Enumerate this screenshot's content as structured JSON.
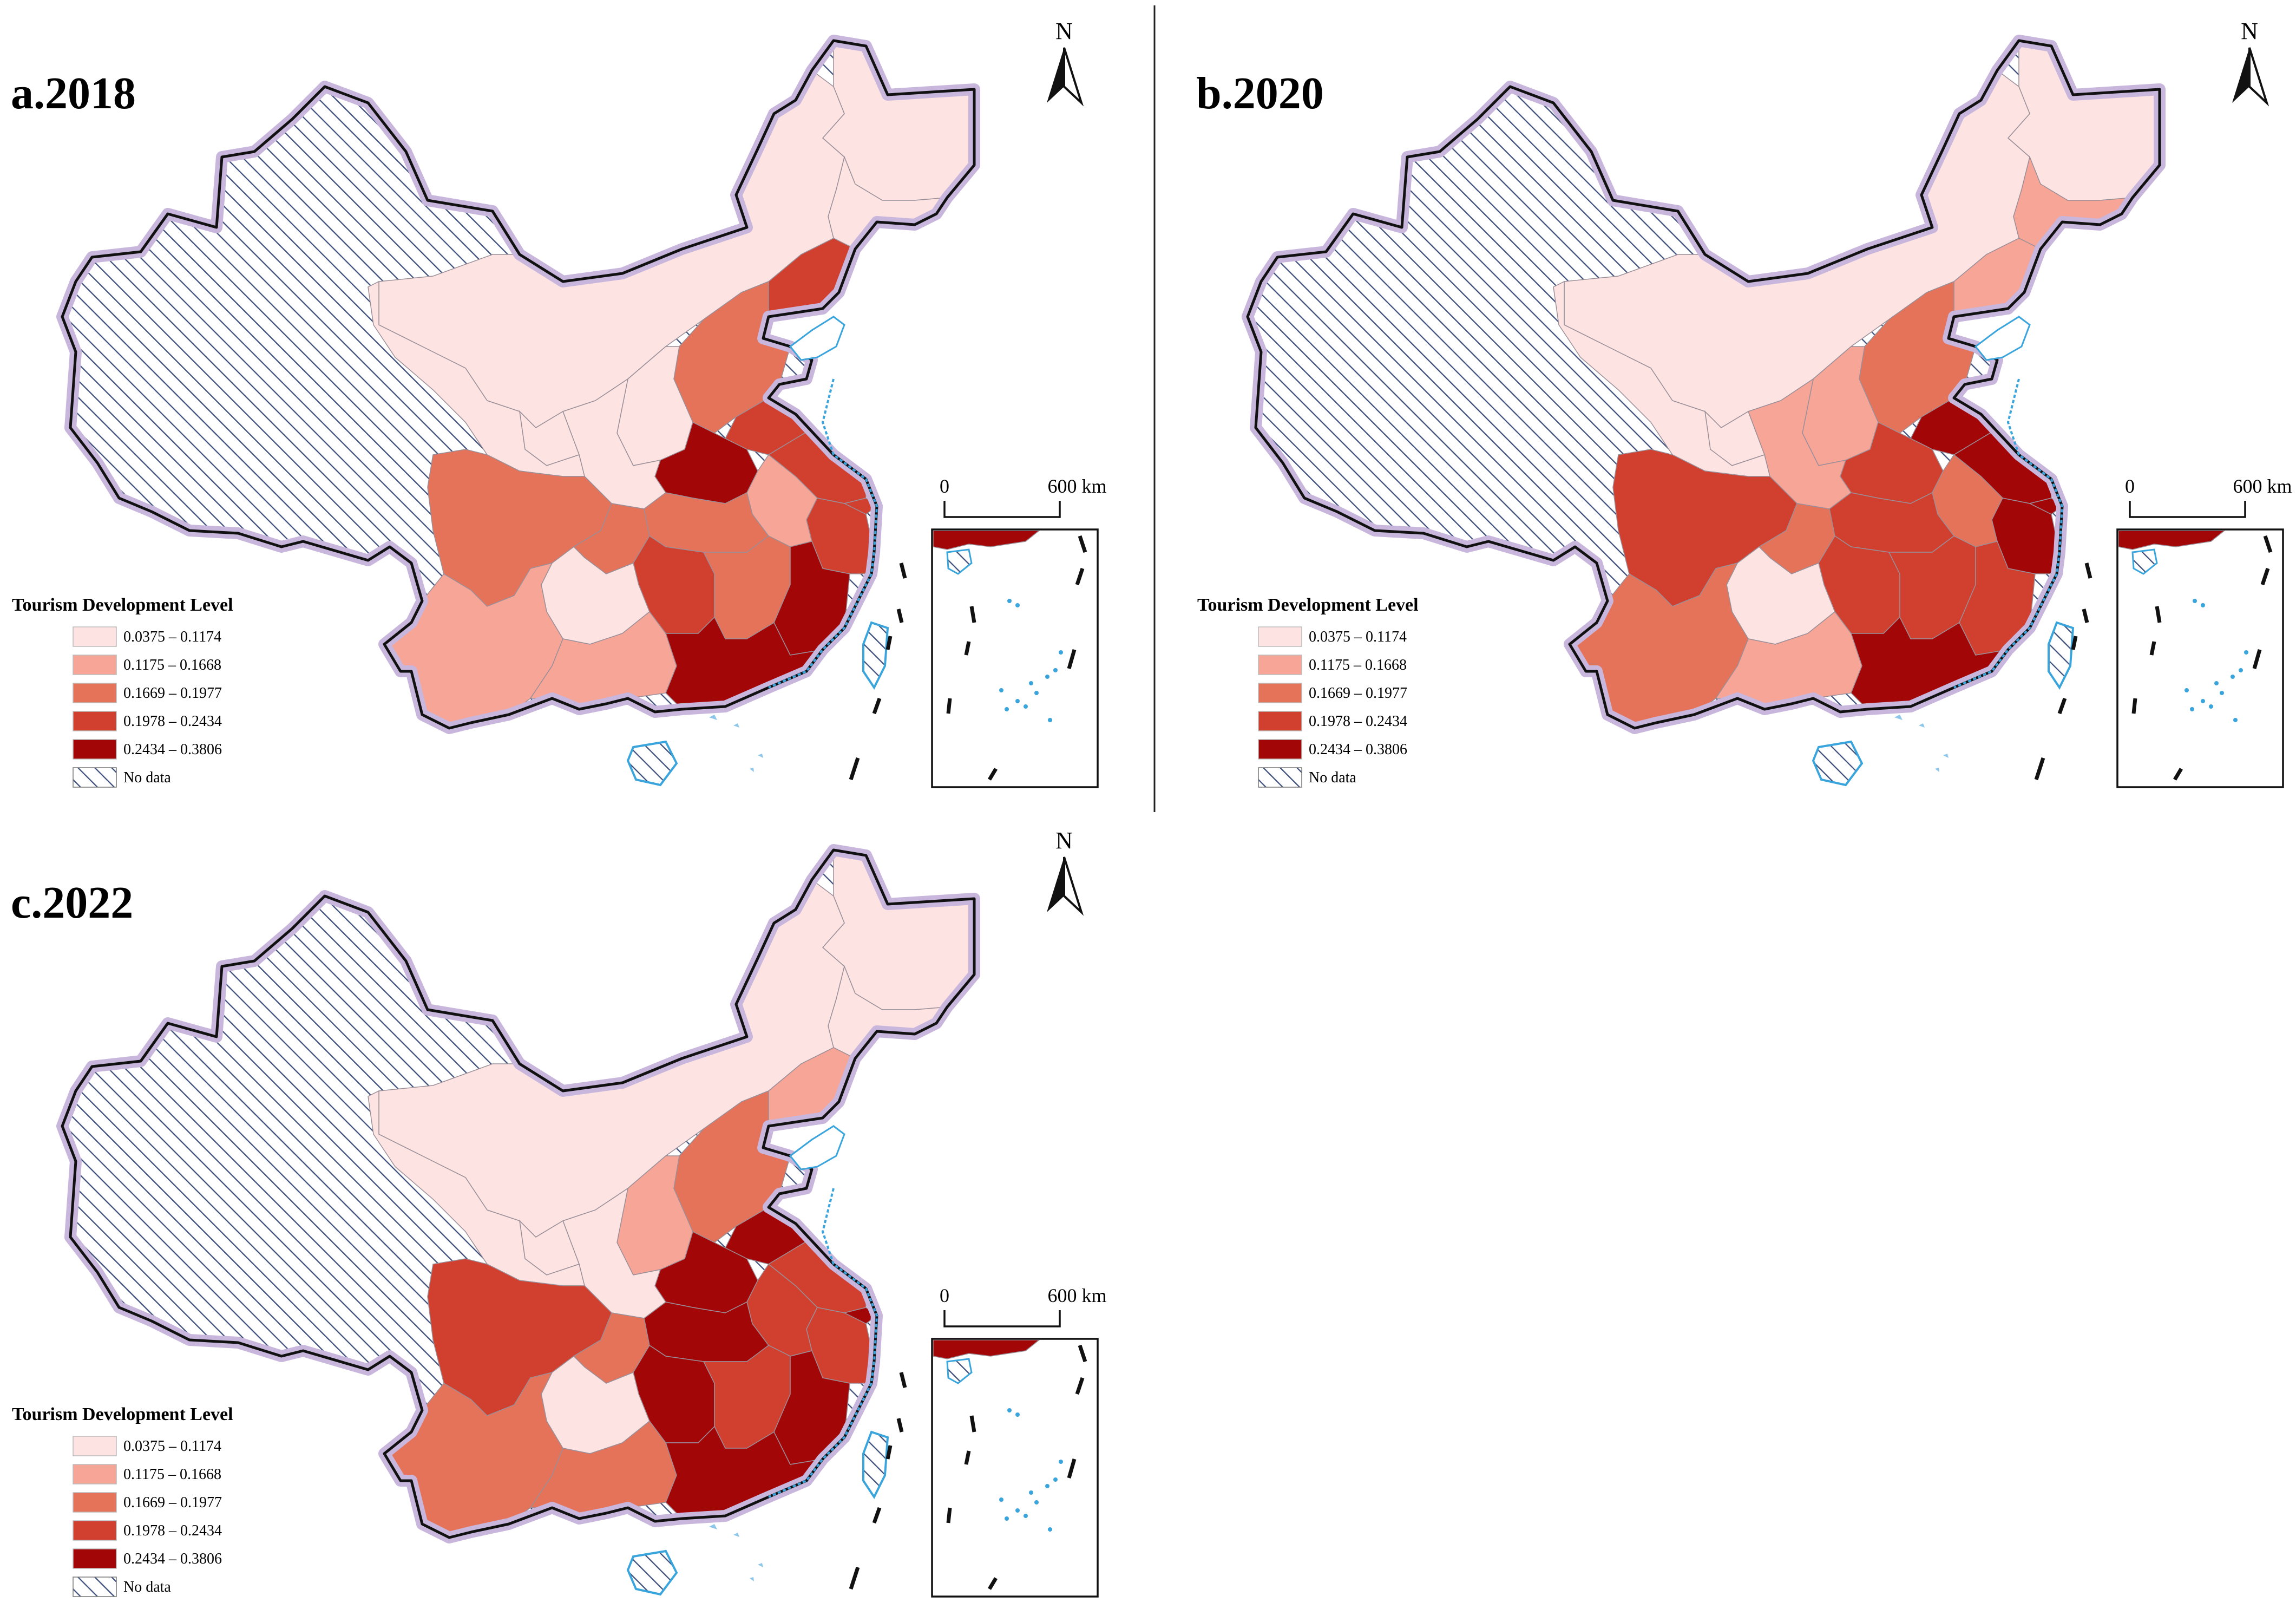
{
  "legend": {
    "title": "Tourism Development Level",
    "classes": [
      {
        "label": "0.0375 – 0.1174",
        "color": "#fde3e1"
      },
      {
        "label": "0.1175 – 0.1668",
        "color": "#f7a597"
      },
      {
        "label": "0.1669 – 0.1977",
        "color": "#e5735a"
      },
      {
        "label": "0.1978 – 0.2434",
        "color": "#d13f2e"
      },
      {
        "label": "0.2434 – 0.3806",
        "color": "#a30606"
      }
    ],
    "nodata": "No data"
  },
  "north_label": "N",
  "scale": {
    "start": "0",
    "end": "600 km"
  },
  "colors": {
    "nodata_fill": "#ffffff",
    "hatch": "#3d4f7a",
    "border_halo": "#c8b6dd",
    "border": "#111111",
    "coast": "#3aa5dc",
    "island": "#8ec7ea",
    "divider": "#222222"
  },
  "maps": [
    {
      "title": "a.2018",
      "regions": {
        "heilongjiang": 0,
        "jilin": 0,
        "liaoning": 3,
        "inner_mongolia": 0,
        "beijing": 1,
        "tianjin": 1,
        "hebei": 2,
        "shanxi": 0,
        "shandong": 3,
        "henan": 4,
        "jiangsu": 3,
        "anhui": 1,
        "shanghai": 3,
        "zhejiang": 3,
        "shaanxi": 0,
        "ningxia": 0,
        "gansu": 0,
        "sichuan": 2,
        "chongqing": 2,
        "hubei": 2,
        "hunan": 3,
        "jiangxi": 2,
        "fujian": 4,
        "guizhou": 0,
        "yunnan": 1,
        "guangxi": 1,
        "guangdong": 4,
        "hainan": -1
      }
    },
    {
      "title": "b.2020",
      "regions": {
        "heilongjiang": 0,
        "jilin": 1,
        "liaoning": 1,
        "inner_mongolia": 0,
        "beijing": 2,
        "tianjin": 2,
        "hebei": 2,
        "shanxi": 1,
        "shandong": 4,
        "henan": 3,
        "jiangsu": 4,
        "anhui": 2,
        "shanghai": 4,
        "zhejiang": 4,
        "shaanxi": 1,
        "ningxia": 0,
        "gansu": 0,
        "sichuan": 3,
        "chongqing": 2,
        "hubei": 3,
        "hunan": 3,
        "jiangxi": 3,
        "fujian": 3,
        "guizhou": 0,
        "yunnan": 2,
        "guangxi": 1,
        "guangdong": 4,
        "hainan": -1
      }
    },
    {
      "title": "c.2022",
      "regions": {
        "heilongjiang": 0,
        "jilin": 0,
        "liaoning": 1,
        "inner_mongolia": 0,
        "beijing": 3,
        "tianjin": 2,
        "hebei": 2,
        "shanxi": 1,
        "shandong": 4,
        "henan": 4,
        "jiangsu": 3,
        "anhui": 3,
        "shanghai": 4,
        "zhejiang": 3,
        "shaanxi": 0,
        "ningxia": 0,
        "gansu": 0,
        "sichuan": 3,
        "chongqing": 2,
        "hubei": 4,
        "hunan": 4,
        "jiangxi": 3,
        "fujian": 4,
        "guizhou": 0,
        "yunnan": 2,
        "guangxi": 2,
        "guangdong": 4,
        "hainan": -1
      }
    }
  ]
}
